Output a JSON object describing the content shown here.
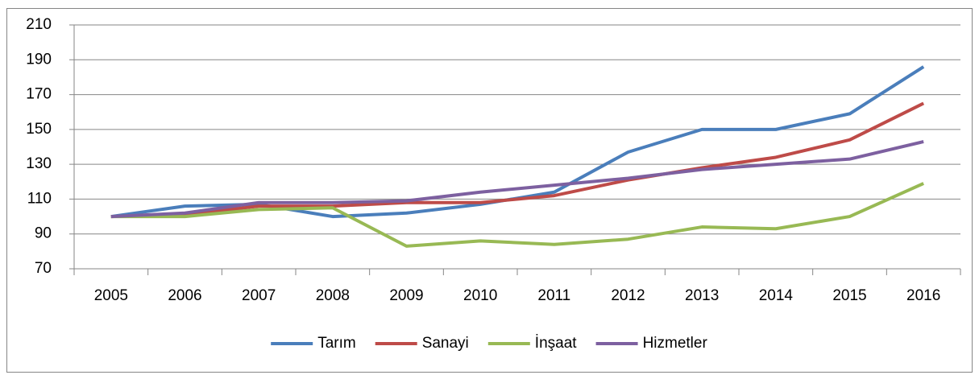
{
  "chart_data": {
    "type": "line",
    "categories": [
      "2005",
      "2006",
      "2007",
      "2008",
      "2009",
      "2010",
      "2011",
      "2012",
      "2013",
      "2014",
      "2015",
      "2016"
    ],
    "series": [
      {
        "name": "Tarım",
        "color": "#4a7ebb",
        "values": [
          100,
          106,
          107,
          100,
          102,
          107,
          114,
          137,
          150,
          150,
          159,
          186
        ]
      },
      {
        "name": "Sanayi",
        "color": "#be4b48",
        "values": [
          100,
          101,
          106,
          106,
          108,
          108,
          112,
          121,
          128,
          134,
          144,
          165
        ]
      },
      {
        "name": "İnşaat",
        "color": "#98b954",
        "values": [
          100,
          100,
          104,
          105,
          83,
          86,
          84,
          87,
          94,
          93,
          100,
          119
        ]
      },
      {
        "name": "Hizmetler",
        "color": "#7d60a0",
        "values": [
          100,
          102,
          108,
          108,
          109,
          114,
          118,
          122,
          127,
          130,
          133,
          143
        ]
      }
    ],
    "ylim": [
      70,
      210
    ],
    "yticks": [
      70,
      90,
      110,
      130,
      150,
      170,
      190,
      210
    ],
    "grid": true,
    "legend": "bottom"
  }
}
